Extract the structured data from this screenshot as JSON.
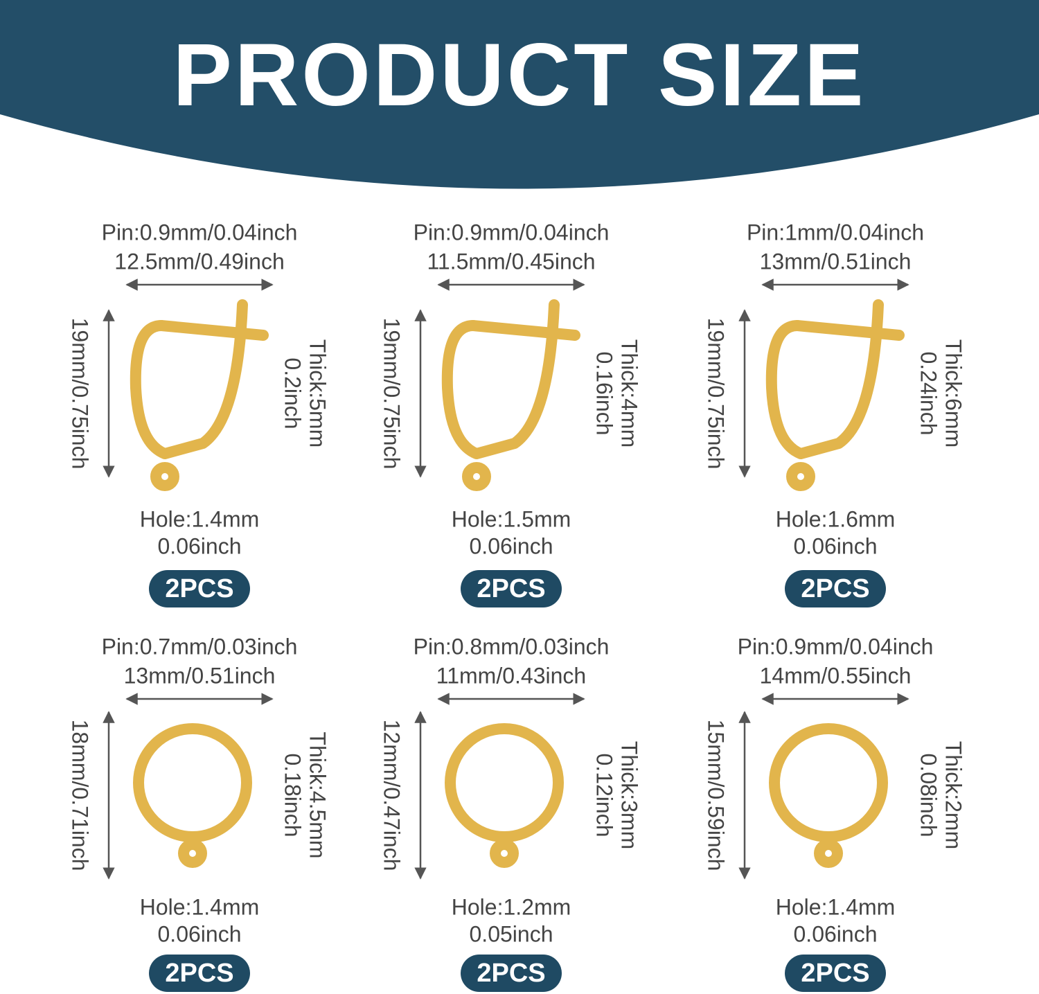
{
  "header": {
    "title": "PRODUCT SIZE"
  },
  "items": [
    {
      "pin": "Pin:0.9mm/0.04inch",
      "width": "12.5mm/0.49inch",
      "height": "19mm/0.75inch",
      "thick": [
        "Thick:5mm",
        "0.2inch"
      ],
      "hole": [
        "Hole:1.4mm",
        "0.06inch"
      ],
      "qty": "2PCS"
    },
    {
      "pin": "Pin:0.9mm/0.04inch",
      "width": "11.5mm/0.45inch",
      "height": "19mm/0.75inch",
      "thick": [
        "Thick:4mm",
        "0.16inch"
      ],
      "hole": [
        "Hole:1.5mm",
        "0.06inch"
      ],
      "qty": "2PCS"
    },
    {
      "pin": "Pin:1mm/0.04inch",
      "width": "13mm/0.51inch",
      "height": "19mm/0.75inch",
      "thick": [
        "Thick:6mm",
        "0.24inch"
      ],
      "hole": [
        "Hole:1.6mm",
        "0.06inch"
      ],
      "qty": "2PCS"
    },
    {
      "pin": "Pin:0.7mm/0.03inch",
      "width": "13mm/0.51inch",
      "height": "18mm/0.71inch",
      "thick": [
        "Thick:4.5mm",
        "0.18inch"
      ],
      "hole": [
        "Hole:1.4mm",
        "0.06inch"
      ],
      "qty": "2PCS"
    },
    {
      "pin": "Pin:0.8mm/0.03inch",
      "width": "11mm/0.43inch",
      "height": "12mm/0.47inch",
      "thick": [
        "Thick:3mm",
        "0.12inch"
      ],
      "hole": [
        "Hole:1.2mm",
        "0.05inch"
      ],
      "qty": "2PCS"
    },
    {
      "pin": "Pin:0.9mm/0.04inch",
      "width": "14mm/0.55inch",
      "height": "15mm/0.59inch",
      "thick": [
        "Thick:2mm",
        "0.08inch"
      ],
      "hole": [
        "Hole:1.4mm",
        "0.06inch"
      ],
      "qty": "2PCS"
    }
  ]
}
